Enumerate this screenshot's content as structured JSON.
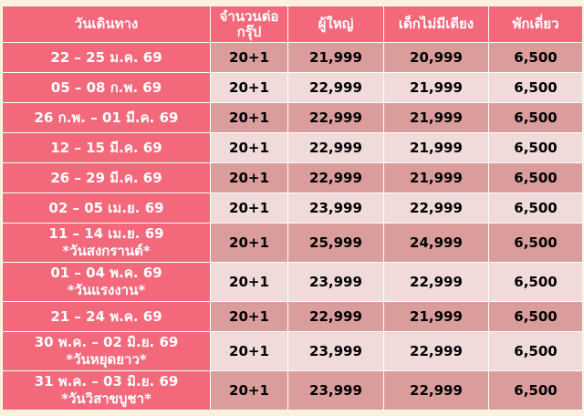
{
  "colors": {
    "header": "#f4687b",
    "dark_row": "#db9c9c",
    "light_row": "#f0dada",
    "background": "#fbf1dc"
  },
  "headers": [
    "วันเดินทาง",
    "จำนวนต่อ กรุ๊ป",
    "ผู้ใหญ่",
    "เด็กไม่มีเตียง",
    "พักเดี่ยว"
  ],
  "rows": [
    {
      "date": "22 – 25 ม.ค. 69",
      "note": "",
      "group": "20+1",
      "adult": "21,999",
      "child": "20,999",
      "single": "6,500"
    },
    {
      "date": "05 – 08 ก.พ. 69",
      "note": "",
      "group": "20+1",
      "adult": "22,999",
      "child": "21,999",
      "single": "6,500"
    },
    {
      "date": "26 ก.พ. – 01 มี.ค. 69",
      "note": "",
      "group": "20+1",
      "adult": "22,999",
      "child": "21,999",
      "single": "6,500"
    },
    {
      "date": "12 – 15 มี.ค. 69",
      "note": "",
      "group": "20+1",
      "adult": "22,999",
      "child": "21,999",
      "single": "6,500"
    },
    {
      "date": "26 – 29 มี.ค. 69",
      "note": "",
      "group": "20+1",
      "adult": "22,999",
      "child": "21,999",
      "single": "6,500"
    },
    {
      "date": "02 – 05 เม.ย. 69",
      "note": "",
      "group": "20+1",
      "adult": "23,999",
      "child": "22,999",
      "single": "6,500"
    },
    {
      "date": "11 – 14 เม.ย. 69",
      "note": "*วันสงกรานต์*",
      "group": "20+1",
      "adult": "25,999",
      "child": "24,999",
      "single": "6,500"
    },
    {
      "date": "01 – 04 พ.ค. 69",
      "note": "*วันแรงงาน*",
      "group": "20+1",
      "adult": "23,999",
      "child": "22,999",
      "single": "6,500"
    },
    {
      "date": "21 – 24 พ.ค. 69",
      "note": "",
      "group": "20+1",
      "adult": "22,999",
      "child": "21,999",
      "single": "6,500"
    },
    {
      "date": "30 พ.ค. – 02 มิ.ย. 69",
      "note": "*วันหยุดยาว*",
      "group": "20+1",
      "adult": "23,999",
      "child": "22,999",
      "single": "6,500"
    },
    {
      "date": "31 พ.ค. – 03 มิ.ย. 69",
      "note": "*วันวิสาขบูชา*",
      "group": "20+1",
      "adult": "23,999",
      "child": "22,999",
      "single": "6,500"
    }
  ]
}
